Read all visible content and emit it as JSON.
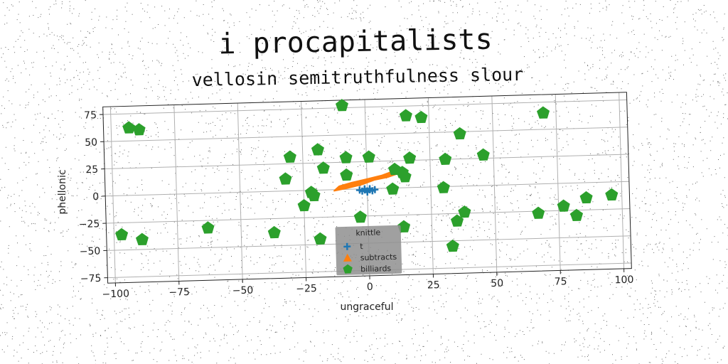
{
  "chart_data": {
    "type": "scatter",
    "title": "i procapitalists",
    "subtitle": "vellosin semitruthfulness slour",
    "xlabel": "ungraceful",
    "ylabel": "phellonic",
    "xlim": [
      -103,
      103
    ],
    "ylim": [
      -80,
      82
    ],
    "x_ticks": [
      -100,
      -75,
      -50,
      -25,
      0,
      25,
      50,
      75,
      100
    ],
    "x_tick_labels": [
      "−100",
      "−75",
      "−50",
      "−25",
      "0",
      "25",
      "50",
      "75",
      "100"
    ],
    "y_ticks": [
      75,
      50,
      25,
      0,
      -25,
      -50,
      -75
    ],
    "y_tick_labels": [
      "75",
      "50",
      "25",
      "0",
      "−25",
      "−50",
      "−75"
    ],
    "grid": true,
    "legend": {
      "title": "knittle",
      "placement": "lower center",
      "entries": [
        "t",
        "subtracts",
        "billiards"
      ]
    },
    "series": [
      {
        "name": "t",
        "marker": "plus",
        "color": "#1f77b4",
        "points": [
          [
            -3,
            -1
          ],
          [
            -2,
            -2
          ],
          [
            -1,
            -1
          ],
          [
            0,
            -2
          ],
          [
            1,
            -1
          ],
          [
            2,
            -2
          ],
          [
            3,
            -1
          ],
          [
            -1,
            0
          ],
          [
            1,
            0
          ],
          [
            0,
            -3
          ]
        ]
      },
      {
        "name": "subtracts",
        "marker": "triangle",
        "color": "#ff7f0e",
        "polygon": [
          [
            -13,
            -1
          ],
          [
            -11,
            3
          ],
          [
            -6,
            6
          ],
          [
            0,
            9
          ],
          [
            6,
            12
          ],
          [
            11,
            16
          ],
          [
            13,
            17
          ],
          [
            12,
            13
          ],
          [
            8,
            10
          ],
          [
            3,
            8
          ],
          [
            -2,
            4
          ],
          [
            -8,
            1
          ]
        ]
      },
      {
        "name": "billiards",
        "marker": "pentagon",
        "color": "#2ca02c",
        "points": [
          [
            -93,
            62
          ],
          [
            -89,
            60
          ],
          [
            -9,
            77
          ],
          [
            16,
            66
          ],
          [
            22,
            64
          ],
          [
            70,
            65
          ],
          [
            -19,
            37
          ],
          [
            -30,
            31
          ],
          [
            -8,
            29
          ],
          [
            1,
            29
          ],
          [
            17,
            27
          ],
          [
            31,
            25
          ],
          [
            46,
            28
          ],
          [
            37,
            48
          ],
          [
            -17,
            20
          ],
          [
            -8,
            13
          ],
          [
            -32,
            11
          ],
          [
            11,
            17
          ],
          [
            14,
            14
          ],
          [
            15,
            10
          ],
          [
            -22,
            -2
          ],
          [
            -21,
            -5
          ],
          [
            10,
            -1
          ],
          [
            30,
            -1
          ],
          [
            -25,
            -14
          ],
          [
            -3,
            -26
          ],
          [
            35,
            -32
          ],
          [
            38,
            -24
          ],
          [
            67,
            -27
          ],
          [
            77,
            -21
          ],
          [
            82,
            -30
          ],
          [
            86,
            -14
          ],
          [
            96,
            -12
          ],
          [
            -97,
            -36
          ],
          [
            -89,
            -41
          ],
          [
            -63,
            -32
          ],
          [
            -37,
            -38
          ],
          [
            -19,
            -45
          ],
          [
            14,
            -36
          ],
          [
            33,
            -55
          ]
        ]
      }
    ]
  }
}
